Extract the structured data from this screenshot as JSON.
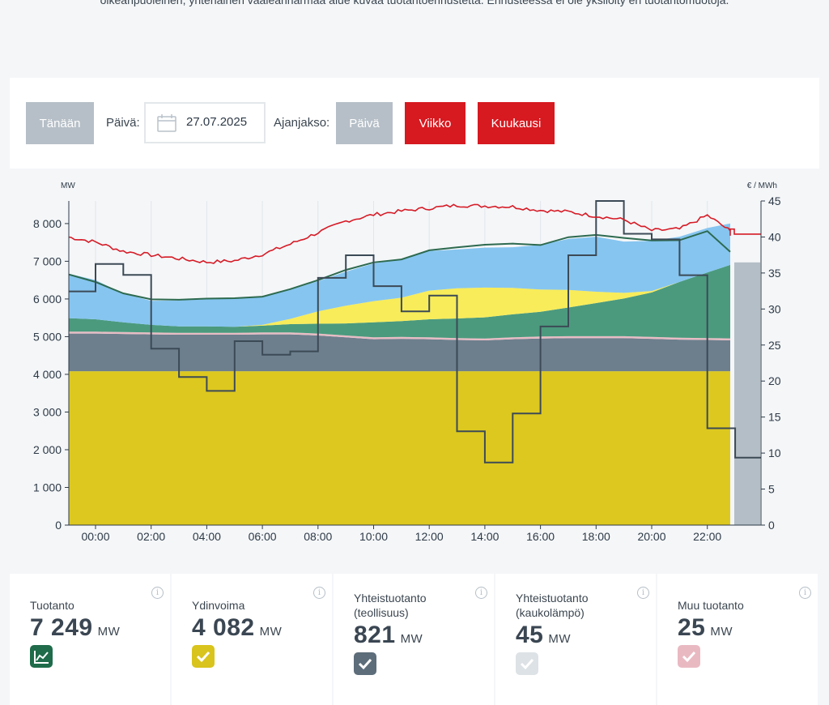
{
  "intro": {
    "text": "oikeanpuoleinen, yhtenäinen vaaleanharmaa alue kuvaa tuotantoennustetta. Ennusteessa ei ole yksilöity eri tuotantomuotoja."
  },
  "controls": {
    "today_label": "Tänään",
    "day_label": "Päivä:",
    "date_value": "27.07.2025",
    "calendar_icon": "calendar-icon",
    "period_label": "Ajanjakso:",
    "period_options": [
      "Päivä",
      "Viikko",
      "Kuukausi"
    ],
    "selected_period": "Päivä"
  },
  "colors": {
    "nuclear": "#ddc81f",
    "chp_industry": "#6d7f8d",
    "other": "#e8bcc4",
    "hydro": "#4b9a7e",
    "solar": "#f8ec5a",
    "wind": "#86c5f0",
    "forecast": "#b3bec6",
    "production_line": "#2d6a4f",
    "price_line": "#d61b26",
    "consumption_line": "#3c4a56",
    "button_red": "#d71920",
    "button_grey": "#b6bfc7"
  },
  "chart_data": {
    "type": "area",
    "left_axis_unit": "MW",
    "right_axis_unit": "€ / MWh",
    "left_ticks": [
      "0",
      "1 000",
      "2 000",
      "3 000",
      "4 000",
      "5 000",
      "6 000",
      "7 000",
      "8 000"
    ],
    "right_ticks": [
      "0",
      "5",
      "10",
      "15",
      "20",
      "25",
      "30",
      "35",
      "40",
      "45"
    ],
    "x_ticks": [
      "00:00",
      "02:00",
      "04:00",
      "06:00",
      "08:00",
      "10:00",
      "12:00",
      "14:00",
      "16:00",
      "18:00",
      "20:00",
      "22:00"
    ],
    "ylim_left": [
      0,
      8600
    ],
    "ylim_right": [
      0,
      45
    ],
    "x_hours": [
      -1,
      0,
      1,
      2,
      3,
      4,
      5,
      6,
      7,
      8,
      9,
      10,
      11,
      12,
      13,
      14,
      15,
      16,
      17,
      18,
      19,
      20,
      21,
      22,
      23
    ],
    "series": [
      {
        "key": "nuclear",
        "values": [
          4082,
          4082,
          4082,
          4082,
          4082,
          4082,
          4082,
          4082,
          4082,
          4082,
          4082,
          4082,
          4082,
          4082,
          4082,
          4082,
          4082,
          4082,
          4082,
          4082,
          4082,
          4082,
          4082,
          4082,
          4082
        ]
      },
      {
        "key": "chp_industry",
        "values": [
          1000,
          1000,
          990,
          980,
          970,
          970,
          970,
          980,
          980,
          950,
          900,
          850,
          860,
          850,
          830,
          820,
          850,
          870,
          880,
          880,
          880,
          860,
          840,
          830,
          821
        ]
      },
      {
        "key": "other",
        "values": [
          50,
          50,
          50,
          50,
          50,
          50,
          50,
          50,
          50,
          50,
          50,
          50,
          50,
          50,
          50,
          50,
          50,
          50,
          50,
          50,
          50,
          50,
          50,
          50,
          50
        ]
      },
      {
        "key": "hydro",
        "values": [
          360,
          330,
          260,
          200,
          170,
          170,
          160,
          180,
          220,
          260,
          320,
          400,
          420,
          480,
          520,
          560,
          610,
          660,
          760,
          880,
          1000,
          1180,
          1480,
          1740,
          1950
        ]
      },
      {
        "key": "solar",
        "values": [
          0,
          0,
          0,
          0,
          0,
          0,
          0,
          20,
          140,
          330,
          470,
          560,
          620,
          760,
          800,
          790,
          700,
          590,
          470,
          300,
          150,
          40,
          0,
          0,
          0
        ]
      },
      {
        "key": "wind",
        "values": [
          1180,
          1040,
          760,
          640,
          690,
          720,
          740,
          740,
          770,
          800,
          900,
          1000,
          1020,
          1050,
          1030,
          1060,
          1080,
          1180,
          1350,
          1460,
          1360,
          1330,
          1200,
          1180,
          1100
        ]
      }
    ],
    "production_total": [
      6650,
      6450,
      6150,
      5990,
      5980,
      6010,
      6020,
      6060,
      6260,
      6500,
      6770,
      6970,
      7050,
      7290,
      7370,
      7440,
      7470,
      7430,
      7640,
      7700,
      7620,
      7550,
      7560,
      7800,
      7249
    ],
    "price": [
      40.0,
      39.3,
      38.0,
      37.5,
      37.0,
      36.5,
      36.7,
      37.6,
      39.0,
      40.6,
      42.2,
      43.1,
      43.6,
      44.0,
      44.4,
      44.3,
      44.2,
      43.7,
      43.5,
      42.9,
      42.4,
      40.9,
      41.1,
      43.0,
      40.4
    ],
    "consumption_step": [
      {
        "from": -1,
        "to": 0,
        "value": 6200
      },
      {
        "from": 0,
        "to": 1,
        "value": 6930
      },
      {
        "from": 1,
        "to": 2,
        "value": 6640
      },
      {
        "from": 2,
        "to": 3,
        "value": 4680
      },
      {
        "from": 3,
        "to": 4,
        "value": 3930
      },
      {
        "from": 4,
        "to": 5,
        "value": 3560
      },
      {
        "from": 5,
        "to": 6,
        "value": 4880
      },
      {
        "from": 6,
        "to": 7,
        "value": 4520
      },
      {
        "from": 7,
        "to": 8,
        "value": 4610
      },
      {
        "from": 8,
        "to": 9,
        "value": 6560
      },
      {
        "from": 9,
        "to": 10,
        "value": 7160
      },
      {
        "from": 10,
        "to": 11,
        "value": 6340
      },
      {
        "from": 11,
        "to": 12,
        "value": 5670
      },
      {
        "from": 12,
        "to": 13,
        "value": 6090
      },
      {
        "from": 13,
        "to": 14,
        "value": 2490
      },
      {
        "from": 14,
        "to": 15,
        "value": 1660
      },
      {
        "from": 15,
        "to": 16,
        "value": 2960
      },
      {
        "from": 16,
        "to": 17,
        "value": 5270
      },
      {
        "from": 17,
        "to": 18,
        "value": 7160
      },
      {
        "from": 18,
        "to": 19,
        "value": 8600
      },
      {
        "from": 19,
        "to": 20,
        "value": 7730
      },
      {
        "from": 20,
        "to": 21,
        "value": 7580
      },
      {
        "from": 21,
        "to": 22,
        "value": 6630
      },
      {
        "from": 22,
        "to": 23,
        "value": 2570
      },
      {
        "from": 23,
        "to": 24,
        "value": 1790
      }
    ],
    "forecast": {
      "from": 23.1,
      "to": 24,
      "value": 6970
    }
  },
  "cards": [
    {
      "title": "Tuotanto",
      "value": "7 249",
      "unit": "MW",
      "badge": "chart-line-icon",
      "badge_color": "#1f6b4a"
    },
    {
      "title": "Ydinvoima",
      "value": "4 082",
      "unit": "MW",
      "badge": "check-icon",
      "badge_color": "#d8c41c"
    },
    {
      "title": "Yhteistuotanto (teollisuus)",
      "value": "821",
      "unit": "MW",
      "badge": "check-icon",
      "badge_color": "#5d6d7a"
    },
    {
      "title": "Yhteistuotanto (kaukolämpö)",
      "value": "45",
      "unit": "MW",
      "badge": "check-icon",
      "badge_color": "#dde2e6"
    },
    {
      "title": "Muu tuotanto",
      "value": "25",
      "unit": "MW",
      "badge": "check-icon",
      "badge_color": "#e9b9c2"
    }
  ],
  "info_glyph": "i"
}
